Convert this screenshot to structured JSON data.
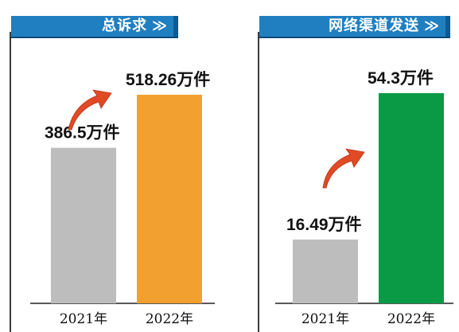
{
  "chart_data": [
    {
      "type": "bar",
      "title": "总诉求",
      "title_suffix": "≫",
      "categories": [
        "2021年",
        "2022年"
      ],
      "values": [
        386.5,
        518.26
      ],
      "value_labels": [
        "386.5万件",
        "518.26万件"
      ],
      "unit": "万件",
      "colors": [
        "#bdbdbd",
        "#f2a030"
      ],
      "trend_arrow": "up",
      "arrow_color": "#e04a24",
      "grid": false,
      "legend": "none"
    },
    {
      "type": "bar",
      "title": "网络渠道发送",
      "title_suffix": "≫",
      "categories": [
        "2021年",
        "2022年"
      ],
      "values": [
        16.49,
        54.3
      ],
      "value_labels": [
        "16.49万件",
        "54.3万件"
      ],
      "unit": "万件",
      "colors": [
        "#bdbdbd",
        "#0a9a45"
      ],
      "trend_arrow": "up",
      "arrow_color": "#e04a24",
      "grid": false,
      "legend": "none"
    }
  ]
}
